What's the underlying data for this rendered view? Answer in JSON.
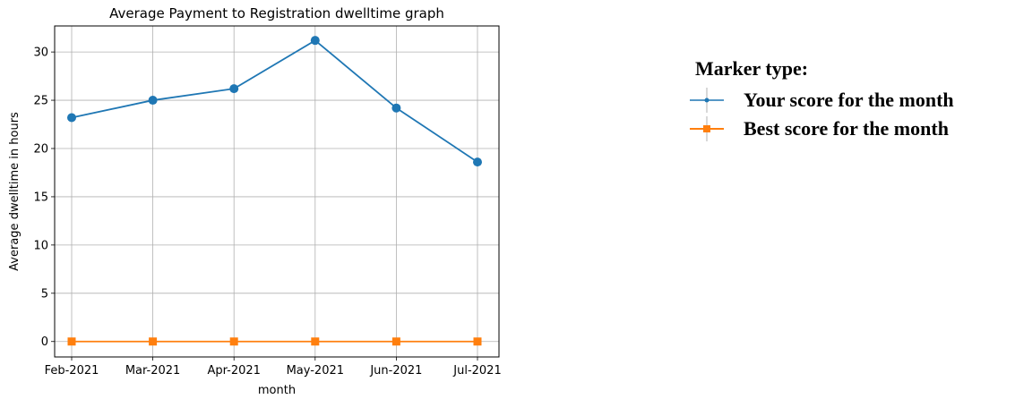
{
  "chart_data": {
    "type": "line",
    "title": "Average Payment to Registration dwelltime graph",
    "xlabel": "month",
    "ylabel": "Average dwelltime in hours",
    "categories": [
      "Feb-2021",
      "Mar-2021",
      "Apr-2021",
      "May-2021",
      "Jun-2021",
      "Jul-2021"
    ],
    "ylim": [
      -1.6,
      32.7
    ],
    "yticks": [
      0,
      5,
      10,
      15,
      20,
      25,
      30
    ],
    "grid": true,
    "series": [
      {
        "name": "Your score for the month",
        "values": [
          23.2,
          25.0,
          26.2,
          31.2,
          24.2,
          18.6
        ],
        "color": "#1f77b4",
        "marker": "circle"
      },
      {
        "name": "Best score for the month",
        "values": [
          0,
          0,
          0,
          0,
          0,
          0
        ],
        "color": "#ff7f0e",
        "marker": "square"
      }
    ]
  },
  "legend": {
    "title": "Marker type:",
    "placement": "right"
  }
}
